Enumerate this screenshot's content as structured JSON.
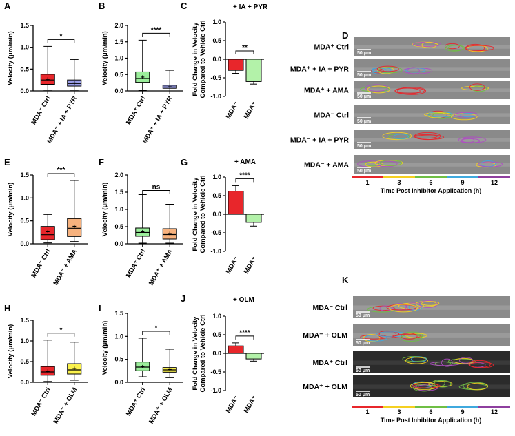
{
  "colors": {
    "red": "#e8262b",
    "blue": "#9b9fe8",
    "green": "#9bee9b",
    "orange": "#f7b27e",
    "yellow": "#fbf24c",
    "lightgreen": "#b3f2a9",
    "axis": "#000000"
  },
  "timebar": {
    "colors": [
      "#e8262b",
      "#f5d021",
      "#6fbf44",
      "#3fa9de",
      "#8e3f9f"
    ],
    "ticks": [
      "1",
      "3",
      "6",
      "9",
      "12"
    ],
    "label": "Time Post Inhibitor Application (h)"
  },
  "chart_data": [
    {
      "panel": "A",
      "type": "box",
      "ylabel": "Velocity (μm/min)",
      "ylim": [
        0,
        1.5
      ],
      "yticks": [
        "0.0",
        "0.5",
        "1.0",
        "1.5"
      ],
      "categories": [
        "MDA⁻ Ctrl",
        "MDA⁻ + IA + PYR"
      ],
      "colors": [
        "#e8262b",
        "#9b9fe8"
      ],
      "boxes": [
        {
          "min": 0.02,
          "q1": 0.15,
          "median": 0.25,
          "q3": 0.38,
          "max": 1.02,
          "mean": 0.27
        },
        {
          "min": 0.02,
          "q1": 0.11,
          "median": 0.17,
          "q3": 0.25,
          "max": 0.72,
          "mean": 0.18
        }
      ],
      "sig": "*"
    },
    {
      "panel": "B",
      "type": "box",
      "ylabel": "Velocity (μm/min)",
      "ylim": [
        0,
        2.0
      ],
      "yticks": [
        "0.0",
        "0.5",
        "1.0",
        "1.5",
        "2.0"
      ],
      "categories": [
        "MDA⁺ Ctrl",
        "MDA⁺ + IA + PYR"
      ],
      "colors": [
        "#9bee9b",
        "#9b9fe8"
      ],
      "boxes": [
        {
          "min": 0.02,
          "q1": 0.26,
          "median": 0.38,
          "q3": 0.58,
          "max": 1.55,
          "mean": 0.42
        },
        {
          "min": 0.0,
          "q1": 0.08,
          "median": 0.12,
          "q3": 0.17,
          "max": 0.63,
          "mean": 0.13
        }
      ],
      "sig": "****"
    },
    {
      "panel": "C",
      "type": "bar",
      "title": "+ IA + PYR",
      "ylabel": "Fold Change in Velocity\nCompared to Vehicle Ctrl",
      "ylim": [
        -1.0,
        1.0
      ],
      "yticks": [
        "-1.0",
        "-0.5",
        "0.0",
        "0.5",
        "1.0"
      ],
      "categories": [
        "MDA⁻",
        "MDA⁺"
      ],
      "colors": [
        "#e8262b",
        "#b3f2a9"
      ],
      "values": [
        -0.3,
        -0.6
      ],
      "errors": [
        0.08,
        0.07
      ],
      "sig": "**"
    },
    {
      "panel": "E",
      "type": "box",
      "ylabel": "Velocity (μm/min)",
      "ylim": [
        0,
        1.5
      ],
      "yticks": [
        "0.0",
        "0.5",
        "1.0",
        "1.5"
      ],
      "categories": [
        "MDA⁻ Ctrl",
        "MDA⁻ + AMA"
      ],
      "colors": [
        "#e8262b",
        "#f7b27e"
      ],
      "boxes": [
        {
          "min": 0.02,
          "q1": 0.09,
          "median": 0.2,
          "q3": 0.38,
          "max": 0.64,
          "mean": 0.26
        },
        {
          "min": 0.05,
          "q1": 0.16,
          "median": 0.34,
          "q3": 0.55,
          "max": 1.38,
          "mean": 0.38
        }
      ],
      "sig": "***"
    },
    {
      "panel": "F",
      "type": "box",
      "ylabel": "Velocity (μm/min)",
      "ylim": [
        0,
        2.0
      ],
      "yticks": [
        "0.0",
        "0.5",
        "1.0",
        "1.5",
        "2.0"
      ],
      "categories": [
        "MDA⁺ Ctrl",
        "MDA⁺ + AMA"
      ],
      "colors": [
        "#9bee9b",
        "#f7b27e"
      ],
      "boxes": [
        {
          "min": 0.02,
          "q1": 0.22,
          "median": 0.33,
          "q3": 0.46,
          "max": 1.43,
          "mean": 0.35
        },
        {
          "min": 0.02,
          "q1": 0.14,
          "median": 0.27,
          "q3": 0.44,
          "max": 1.15,
          "mean": 0.3
        }
      ],
      "sig": "ns"
    },
    {
      "panel": "G",
      "type": "bar",
      "title": "+  AMA",
      "ylabel": "Fold Change in Velocity\nCompared to Vehicle Ctrl",
      "ylim": [
        -1.0,
        1.0
      ],
      "yticks": [
        "-1.0",
        "-0.5",
        "0.0",
        "0.5",
        "1.0"
      ],
      "categories": [
        "MDA⁻",
        "MDA⁺"
      ],
      "colors": [
        "#e8262b",
        "#b3f2a9"
      ],
      "values": [
        0.62,
        -0.22
      ],
      "errors": [
        0.15,
        0.1
      ],
      "sig": "****"
    },
    {
      "panel": "H",
      "type": "box",
      "ylabel": "Velocity (μm/min)",
      "ylim": [
        0,
        1.5
      ],
      "yticks": [
        "0.0",
        "0.5",
        "1.0",
        "1.5"
      ],
      "categories": [
        "MDA⁻ Ctrl",
        "MDA⁻ + OLM"
      ],
      "colors": [
        "#e8262b",
        "#fbf24c"
      ],
      "boxes": [
        {
          "min": 0.02,
          "q1": 0.17,
          "median": 0.25,
          "q3": 0.38,
          "max": 1.02,
          "mean": 0.27
        },
        {
          "min": 0.05,
          "q1": 0.2,
          "median": 0.3,
          "q3": 0.45,
          "max": 0.97,
          "mean": 0.33
        }
      ],
      "sig": "*"
    },
    {
      "panel": "I",
      "type": "box",
      "ylabel": "Velocity (μm/min)",
      "ylim": [
        0,
        1.5
      ],
      "yticks": [
        "0.0",
        "0.5",
        "1.0",
        "1.5"
      ],
      "categories": [
        "MDA⁺ Ctrl",
        "MDA⁺ + OLM"
      ],
      "colors": [
        "#9bee9b",
        "#fbf24c"
      ],
      "boxes": [
        {
          "min": 0.12,
          "q1": 0.25,
          "median": 0.33,
          "q3": 0.44,
          "max": 0.96,
          "mean": 0.34
        },
        {
          "min": 0.1,
          "q1": 0.22,
          "median": 0.27,
          "q3": 0.32,
          "max": 0.72,
          "mean": 0.28
        }
      ],
      "sig": "*"
    },
    {
      "panel": "J",
      "type": "bar",
      "title": "+ OLM",
      "ylabel": "Fold Change in Velocity\nCompared to Vehicle Ctrl",
      "ylim": [
        -1.0,
        1.0
      ],
      "yticks": [
        "-1.0",
        "-0.5",
        "0.0",
        "0.5",
        "1.0"
      ],
      "categories": [
        "MDA⁻",
        "MDA⁺"
      ],
      "colors": [
        "#e8262b",
        "#b3f2a9"
      ],
      "values": [
        0.2,
        -0.15
      ],
      "errors": [
        0.08,
        0.06
      ],
      "sig": "****"
    }
  ],
  "image_panels": [
    {
      "panel": "D",
      "rows": [
        {
          "label": "MDA⁺ Ctrl",
          "scale": "50 μm"
        },
        {
          "label": "MDA⁺ + IA + PYR",
          "scale": "50 μm"
        },
        {
          "label": "MDA⁺ + AMA",
          "scale": "50 μm"
        },
        {
          "label": "MDA⁻ Ctrl",
          "scale": "50 μm"
        },
        {
          "label": "MDA⁻ + IA + PYR",
          "scale": "50 μm"
        },
        {
          "label": "MDA⁻ + AMA",
          "scale": "50 μm"
        }
      ]
    },
    {
      "panel": "K",
      "rows": [
        {
          "label": "MDA⁻ Ctrl",
          "scale": "50 μm"
        },
        {
          "label": "MDA⁻ + OLM",
          "scale": "50 μm"
        },
        {
          "label": "MDA⁺ Ctrl",
          "scale": "50 μm"
        },
        {
          "label": "MDA⁺ + OLM",
          "scale": "50 μm"
        }
      ]
    }
  ]
}
